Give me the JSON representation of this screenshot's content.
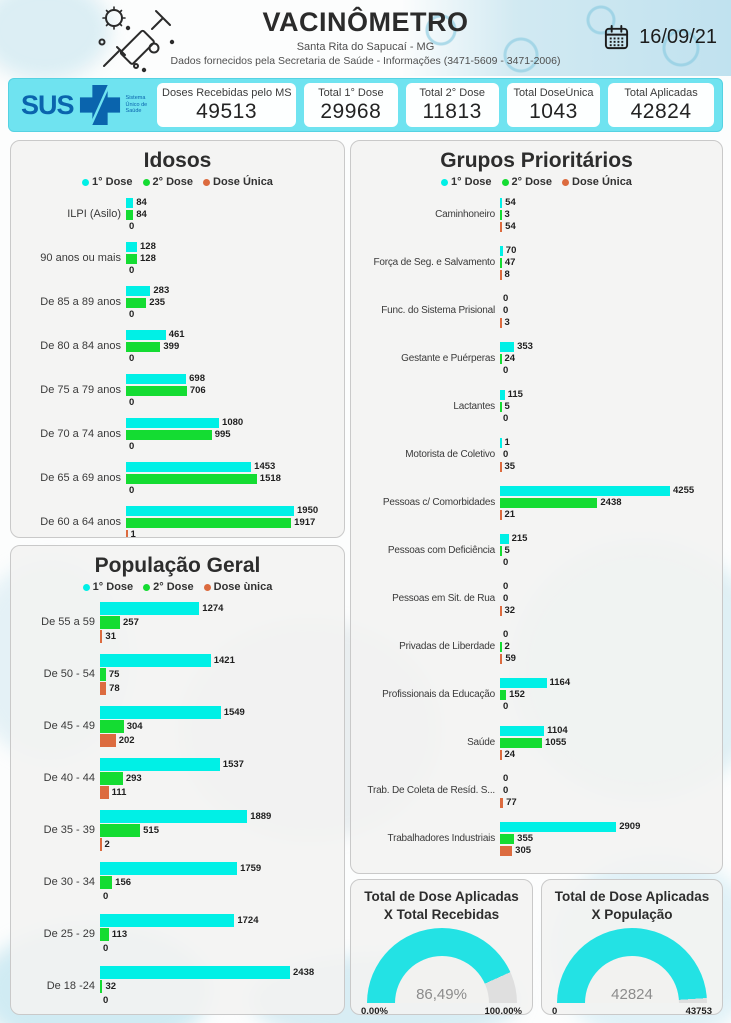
{
  "header": {
    "title": "VACINÔMETRO",
    "subtitle": "Santa Rita do Sapucaí - MG",
    "info": "Dados fornecidos pela Secretaria de Saúde - Informações (3471-5609 - 3471-2006)",
    "date": "16/09/21"
  },
  "stats_bar": {
    "logo": {
      "text": "SUS",
      "caption": "Sistema Único de Saúde"
    },
    "boxes": [
      {
        "label": "Doses Recebidas pelo MS",
        "value": "49513"
      },
      {
        "label": "Total 1° Dose",
        "value": "29968"
      },
      {
        "label": "Total 2° Dose",
        "value": "11813"
      },
      {
        "label": "Total DoseÚnica",
        "value": "1043"
      },
      {
        "label": "Total Aplicadas",
        "value": "42824"
      }
    ]
  },
  "colors": {
    "dose1": "#00F0E6",
    "dose2": "#14DC32",
    "dose_unica": "#DC6B3F",
    "gauge_fill": "#23E2E4",
    "gauge_rest": "#DFDFDF",
    "stats_bar_bg": "#6FE3F0",
    "sus_blue": "#0A64AD"
  },
  "chart_data": [
    {
      "type": "bar",
      "orientation": "horizontal",
      "title": "Idosos",
      "legend": [
        "1° Dose",
        "2° Dose",
        "Dose Única"
      ],
      "max": 1950,
      "categories": [
        "ILPI (Asilo)",
        "90 anos ou mais",
        "De 85 a 89 anos",
        "De 80 a 84 anos",
        "De 75 a 79 anos",
        "De 70 a 74 anos",
        "De 65 a 69 anos",
        "De 60 a 64 anos"
      ],
      "series": [
        {
          "name": "1° Dose",
          "values": [
            84,
            128,
            283,
            461,
            698,
            1080,
            1453,
            1950
          ]
        },
        {
          "name": "2° Dose",
          "values": [
            84,
            128,
            235,
            399,
            706,
            995,
            1518,
            1917
          ]
        },
        {
          "name": "Dose Única",
          "values": [
            0,
            0,
            0,
            0,
            0,
            0,
            0,
            1
          ]
        }
      ]
    },
    {
      "type": "bar",
      "orientation": "horizontal",
      "title": "População Geral",
      "legend": [
        "1° Dose",
        "2° Dose",
        "Dose ùnica"
      ],
      "max": 2438,
      "categories": [
        "De 55 a 59",
        "De 50 - 54",
        "De 45 - 49",
        "De 40 - 44",
        "De 35 - 39",
        "De 30 - 34",
        "De 25 - 29",
        "De 18 -24"
      ],
      "series": [
        {
          "name": "1° Dose",
          "values": [
            1274,
            1421,
            1549,
            1537,
            1889,
            1759,
            1724,
            2438
          ]
        },
        {
          "name": "2° Dose",
          "values": [
            257,
            75,
            304,
            293,
            515,
            156,
            113,
            32
          ]
        },
        {
          "name": "Dose ùnica",
          "values": [
            31,
            78,
            202,
            111,
            2,
            0,
            0,
            0
          ]
        }
      ]
    },
    {
      "type": "bar",
      "orientation": "horizontal",
      "title": "Grupos Prioritários",
      "legend": [
        "1° Dose",
        "2° Dose",
        "Dose Única"
      ],
      "max": 4255,
      "categories": [
        "Caminhoneiro",
        "Força de Seg. e Salvamento",
        "Func. do Sistema Prisional",
        "Gestante e Puérperas",
        "Lactantes",
        "Motorista de Coletivo",
        "Pessoas c/ Comorbidades",
        "Pessoas com Deficiência",
        "Pessoas em Sit. de Rua",
        "Privadas de Liberdade",
        "Profissionais da Educação",
        "Saúde",
        "Trab. De Coleta de Resíd. S...",
        "Trabalhadores Industriais"
      ],
      "series": [
        {
          "name": "1° Dose",
          "values": [
            54,
            70,
            0,
            353,
            115,
            1,
            4255,
            215,
            0,
            0,
            1164,
            1104,
            0,
            2909
          ]
        },
        {
          "name": "2° Dose",
          "values": [
            3,
            47,
            0,
            24,
            5,
            0,
            2438,
            5,
            0,
            2,
            152,
            1055,
            0,
            355
          ]
        },
        {
          "name": "Dose Única",
          "values": [
            54,
            8,
            3,
            0,
            0,
            35,
            21,
            0,
            32,
            59,
            0,
            24,
            77,
            305
          ]
        }
      ]
    },
    {
      "type": "gauge",
      "title": "Total de Dose Aplicadas X Total Recebidas",
      "value": "86,49%",
      "percent": 86.49,
      "min_label": "0,00%",
      "max_label": "100,00%"
    },
    {
      "type": "gauge",
      "title": "Total de Dose Aplicadas X População",
      "value": "42824",
      "percent": 97.88,
      "min_label": "0",
      "max_label": "43753"
    }
  ]
}
